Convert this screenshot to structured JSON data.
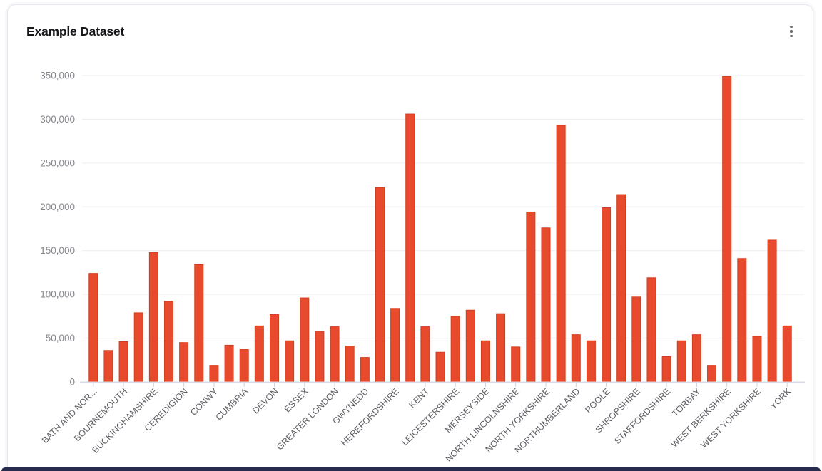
{
  "card": {
    "title": "Example Dataset",
    "menu_icon": "kebab-vertical"
  },
  "colors": {
    "bar_fill": "#e84a2d",
    "bar_border": "#d23d1e",
    "grid_line": "#ededf1",
    "axis_line": "#d8dbe7",
    "tick_mark": "#cfd3e0",
    "y_tick_text": "#86868e",
    "x_tick_text": "#5f5f66",
    "title_text": "#17171c",
    "card_border": "#e6e7ee",
    "bottom_strip": "#272c4f"
  },
  "chart_data": {
    "type": "bar",
    "title": "Example Dataset",
    "xlabel": "",
    "ylabel": "",
    "ylim": [
      0,
      350000
    ],
    "y_ticks": [
      0,
      50000,
      100000,
      150000,
      200000,
      250000,
      300000,
      350000
    ],
    "y_tick_labels": [
      "0",
      "50,000",
      "100,000",
      "150,000",
      "200,000",
      "250,000",
      "300,000",
      "350,000"
    ],
    "grid": "horizontal",
    "legend": "none",
    "x_label_rotation": 45,
    "x_labels_shown_every": 2,
    "bars": [
      {
        "label": "BATH AND NOR...",
        "value": 124000
      },
      {
        "label": "",
        "value": 36000
      },
      {
        "label": "BOURNEMOUTH",
        "value": 46000
      },
      {
        "label": "",
        "value": 79000
      },
      {
        "label": "BUCKINGHAMSHIRE",
        "value": 148000
      },
      {
        "label": "",
        "value": 92000
      },
      {
        "label": "CEREDIGION",
        "value": 45000
      },
      {
        "label": "",
        "value": 134000
      },
      {
        "label": "CONWY",
        "value": 19000
      },
      {
        "label": "",
        "value": 42000
      },
      {
        "label": "CUMBRIA",
        "value": 37000
      },
      {
        "label": "",
        "value": 64000
      },
      {
        "label": "DEVON",
        "value": 77000
      },
      {
        "label": "",
        "value": 47000
      },
      {
        "label": "ESSEX",
        "value": 96000
      },
      {
        "label": "",
        "value": 58000
      },
      {
        "label": "GREATER LONDON",
        "value": 63000
      },
      {
        "label": "",
        "value": 41000
      },
      {
        "label": "GWYNEDD",
        "value": 28000
      },
      {
        "label": "",
        "value": 222000
      },
      {
        "label": "HEREFORDSHIRE",
        "value": 84000
      },
      {
        "label": "",
        "value": 306000
      },
      {
        "label": "KENT",
        "value": 63000
      },
      {
        "label": "",
        "value": 34000
      },
      {
        "label": "LEICESTERSHIRE",
        "value": 75000
      },
      {
        "label": "",
        "value": 82000
      },
      {
        "label": "MERSEYSIDE",
        "value": 47000
      },
      {
        "label": "",
        "value": 78000
      },
      {
        "label": "NORTH LINCOLNSHIRE",
        "value": 40000
      },
      {
        "label": "",
        "value": 194000
      },
      {
        "label": "NORTH YORKSHIRE",
        "value": 176000
      },
      {
        "label": "",
        "value": 293000
      },
      {
        "label": "NORTHUMBERLAND",
        "value": 54000
      },
      {
        "label": "",
        "value": 47000
      },
      {
        "label": "POOLE",
        "value": 199000
      },
      {
        "label": "",
        "value": 214000
      },
      {
        "label": "SHROPSHIRE",
        "value": 97000
      },
      {
        "label": "",
        "value": 119000
      },
      {
        "label": "STAFFORDSHIRE",
        "value": 29000
      },
      {
        "label": "",
        "value": 47000
      },
      {
        "label": "TORBAY",
        "value": 54000
      },
      {
        "label": "",
        "value": 19000
      },
      {
        "label": "WEST BERKSHIRE",
        "value": 349000
      },
      {
        "label": "",
        "value": 141000
      },
      {
        "label": "WEST YORKSHIRE",
        "value": 52000
      },
      {
        "label": "",
        "value": 162000
      },
      {
        "label": "YORK",
        "value": 64000
      }
    ]
  }
}
